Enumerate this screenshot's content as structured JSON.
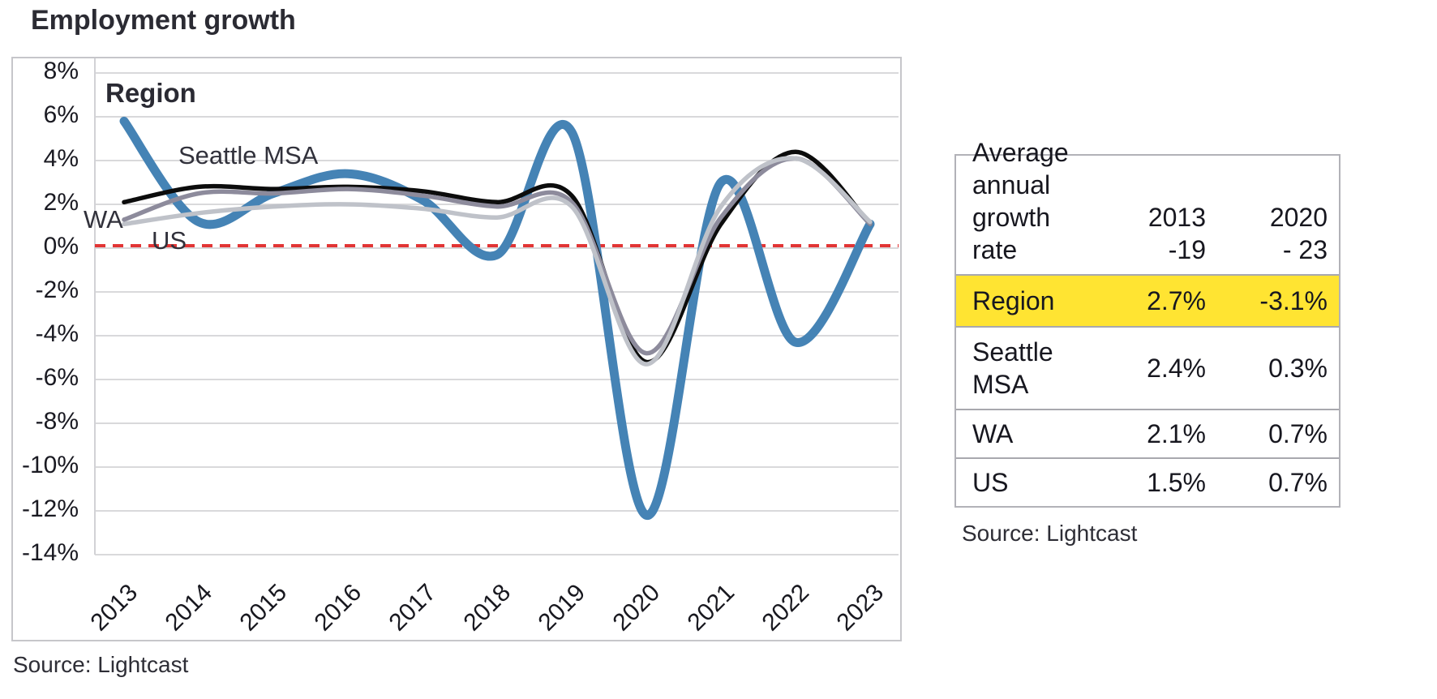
{
  "chart": {
    "title": "Employment growth",
    "source": "Source: Lightcast"
  },
  "chart_data": {
    "type": "line",
    "title": "Employment growth",
    "x": [
      2013,
      2014,
      2015,
      2016,
      2017,
      2018,
      2019,
      2020,
      2021,
      2022,
      2023
    ],
    "series": [
      {
        "name": "Region",
        "color": "#4583b5",
        "values": [
          5.8,
          1.2,
          2.5,
          3.4,
          2.2,
          -0.3,
          5.3,
          -12.2,
          3.0,
          -4.3,
          1.1
        ]
      },
      {
        "name": "Seattle MSA",
        "color": "#0c0c0c",
        "values": [
          2.1,
          2.8,
          2.7,
          2.8,
          2.6,
          2.1,
          2.4,
          -5.2,
          1.1,
          4.4,
          1.1
        ]
      },
      {
        "name": "WA",
        "color": "#8d8b9c",
        "values": [
          1.3,
          2.5,
          2.5,
          2.7,
          2.4,
          1.9,
          2.1,
          -4.8,
          1.4,
          4.1,
          1.1
        ]
      },
      {
        "name": "US",
        "color": "#bfc2c9",
        "values": [
          1.1,
          1.6,
          1.9,
          2.0,
          1.8,
          1.4,
          1.9,
          -5.3,
          1.9,
          4.1,
          1.2
        ]
      }
    ],
    "ylim": [
      -14,
      8
    ],
    "yticks": [
      8,
      6,
      4,
      2,
      0,
      -2,
      -4,
      -6,
      -8,
      -10,
      -12,
      -14
    ],
    "ytick_suffix": "%",
    "grid": true,
    "gridline_color": "#d9d9db",
    "zero_line": {
      "value": 0,
      "color": "#e23535",
      "style": "dashed"
    },
    "legend_position": "inline-labels"
  },
  "table": {
    "header": {
      "label": "Average\nannual\ngrowth rate",
      "col1": "2013\n-19",
      "col2": "2020\n- 23"
    },
    "rows": [
      {
        "label": "Region",
        "v2013_19": "2.7%",
        "v2020_23": "-3.1%",
        "highlight": true
      },
      {
        "label": "Seattle\nMSA",
        "v2013_19": "2.4%",
        "v2020_23": "0.3%",
        "highlight": false
      },
      {
        "label": "WA",
        "v2013_19": "2.1%",
        "v2020_23": "0.7%",
        "highlight": false
      },
      {
        "label": "US",
        "v2013_19": "1.5%",
        "v2020_23": "0.7%",
        "highlight": false
      }
    ],
    "highlight_color": "#ffe432",
    "source": "Source: Lightcast"
  }
}
